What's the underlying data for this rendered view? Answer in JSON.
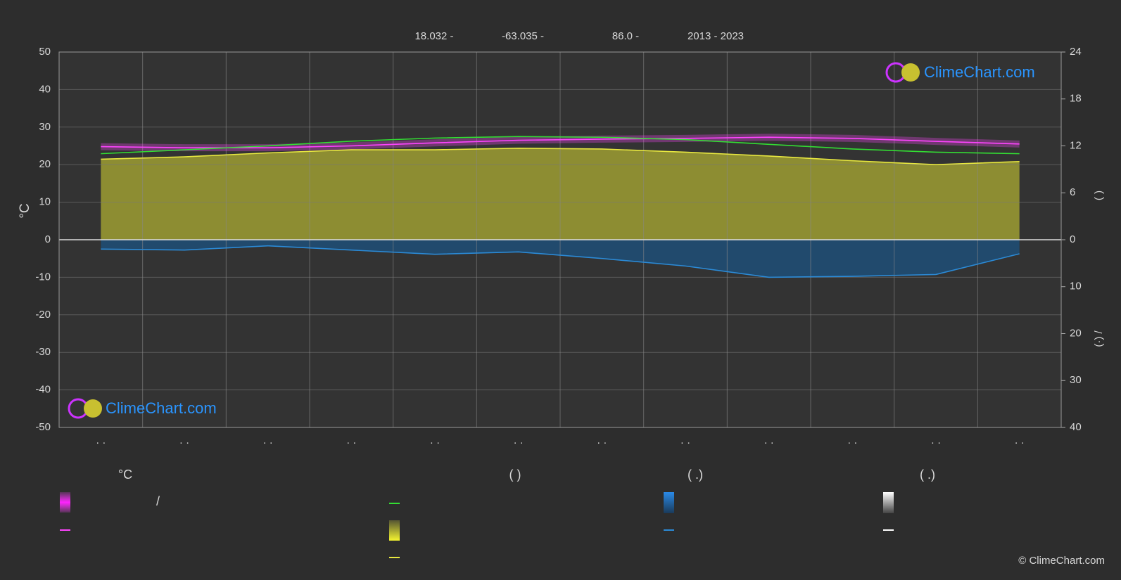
{
  "chart_data": {
    "type": "line",
    "header": [
      "18.032 -",
      "-63.035 -",
      "86.0 -",
      "2013 - 2023"
    ],
    "ylabel": "°C",
    "y2label": "(      )",
    "y3label": "(·)     /",
    "categories": [
      "· ·",
      "· ·",
      "· ·",
      "· ·",
      "· ·",
      "· ·",
      "· ·",
      "· ·",
      "· ·",
      "· ·",
      "· ·",
      "· ·"
    ],
    "ylim": [
      -50,
      50
    ],
    "yticks": [
      -50,
      -40,
      -30,
      -20,
      -10,
      0,
      10,
      20,
      30,
      40,
      50
    ],
    "y2lim": [
      0,
      24
    ],
    "y2ticks": [
      6,
      12,
      18,
      24
    ],
    "y3lim": [
      0,
      40
    ],
    "y3ticks": [
      0,
      10,
      20,
      30,
      40
    ],
    "grid": true,
    "series": [
      {
        "color": "#ff44ff",
        "axis": "y",
        "values": [
          24.8,
          24.5,
          24.5,
          25.0,
          25.8,
          26.5,
          26.8,
          27.0,
          27.3,
          27.0,
          26.2,
          25.5
        ]
      },
      {
        "color": "#33dd33",
        "axis": "y2",
        "values": [
          11.0,
          11.5,
          12.0,
          12.6,
          13.0,
          13.2,
          13.1,
          12.8,
          12.2,
          11.6,
          11.2,
          11.0
        ]
      },
      {
        "color": "#e8e840",
        "axis": "y2",
        "fill": "#9d9d33",
        "values": [
          10.3,
          10.6,
          11.1,
          11.5,
          11.5,
          11.7,
          11.6,
          11.2,
          10.7,
          10.1,
          9.6,
          10.0
        ]
      },
      {
        "color": "#2b8ad6",
        "axis": "y3",
        "fill": "#1f4f78",
        "values": [
          2.0,
          2.2,
          1.3,
          2.2,
          3.1,
          2.6,
          4.0,
          5.6,
          8.0,
          7.8,
          7.4,
          3.0
        ]
      }
    ],
    "legend": {
      "headers": [
        "°C",
        "(          )",
        "(   .)",
        "(   .)"
      ],
      "note": "/"
    },
    "logo": "ClimeChart.com",
    "copyright": "© ClimeChart.com"
  }
}
